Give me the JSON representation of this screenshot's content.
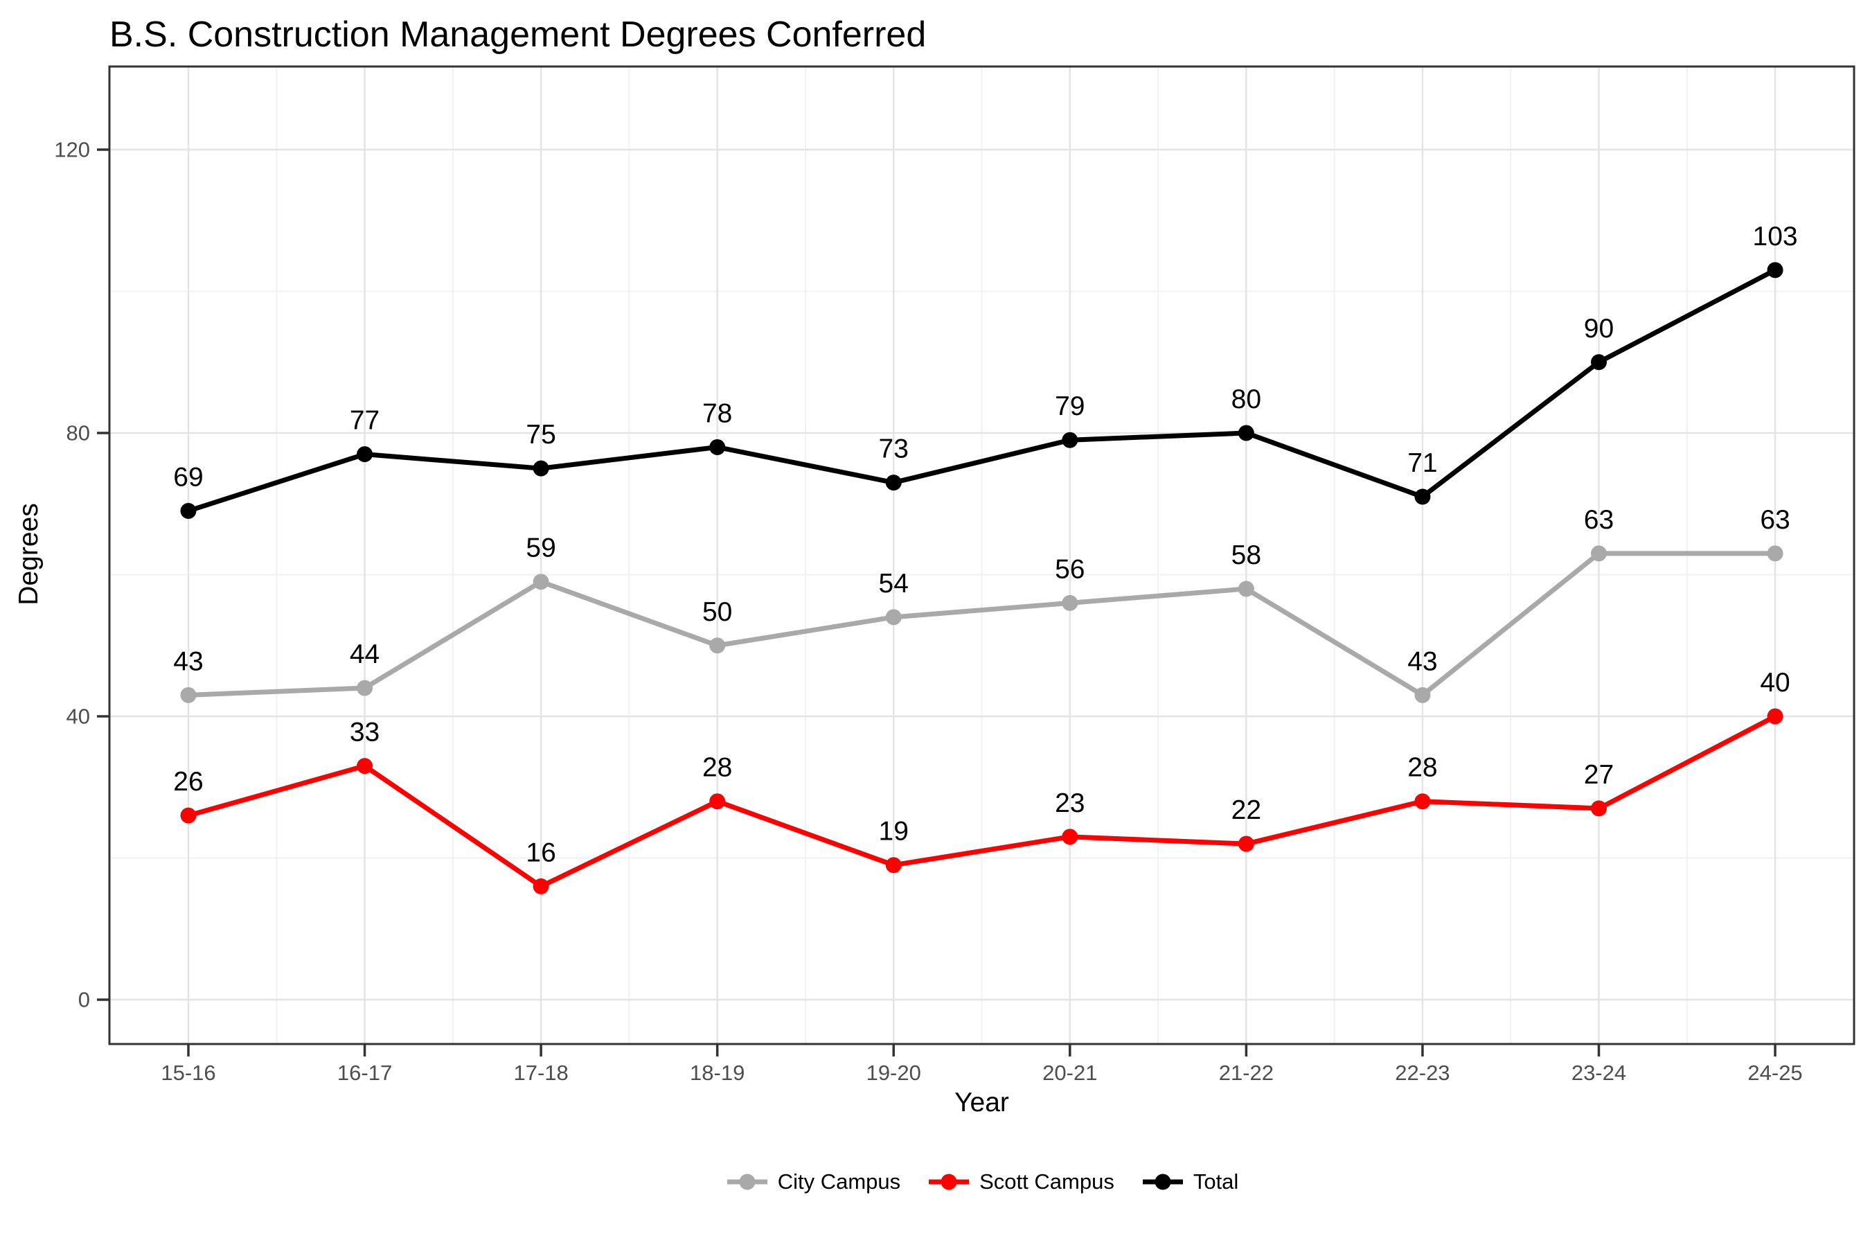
{
  "chart_data": {
    "type": "line",
    "title": "B.S. Construction Management Degrees Conferred",
    "xlabel": "Year",
    "ylabel": "Degrees",
    "categories": [
      "15-16",
      "16-17",
      "17-18",
      "18-19",
      "19-20",
      "20-21",
      "21-22",
      "22-23",
      "23-24",
      "24-25"
    ],
    "series": [
      {
        "name": "City Campus",
        "color": "#A9A9A9",
        "values": [
          43,
          44,
          59,
          50,
          54,
          56,
          58,
          43,
          63,
          63
        ]
      },
      {
        "name": "Scott Campus",
        "color": "#FF0000",
        "values": [
          26,
          33,
          16,
          28,
          19,
          23,
          22,
          28,
          27,
          40
        ]
      },
      {
        "name": "Total",
        "color": "#000000",
        "values": [
          69,
          77,
          75,
          78,
          73,
          79,
          80,
          71,
          90,
          103
        ]
      }
    ],
    "y_ticks": [
      0,
      40,
      80,
      120
    ],
    "y_tick_labels": [
      "0",
      "40",
      "80",
      "120"
    ],
    "y_minor_ticks": [
      20,
      60,
      100
    ],
    "ylim": [
      -6,
      132
    ],
    "grid": true,
    "legend_position": "bottom",
    "point_labels_shown": true,
    "colors": {
      "axis_text": "#4D4D4D",
      "panel_border": "#333333",
      "grid_major": "#E4E4E4",
      "grid_minor": "#F1F1F1",
      "background": "#FFFFFF",
      "label_text": "#000000"
    }
  }
}
